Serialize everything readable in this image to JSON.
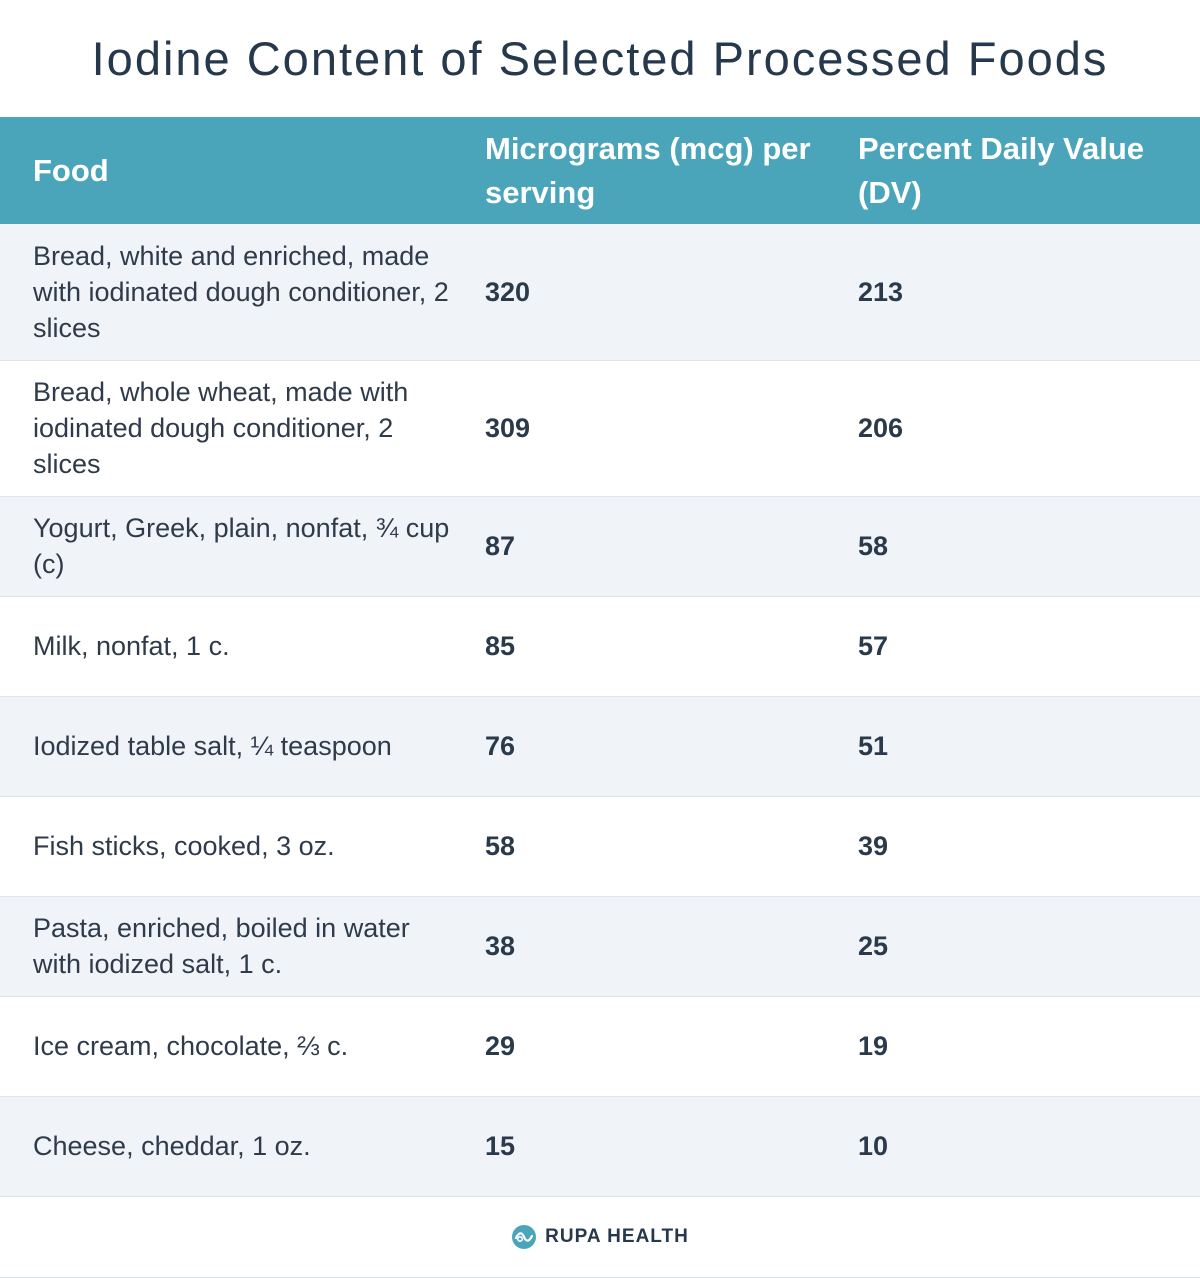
{
  "title": "Iodine Content of Selected Processed Foods",
  "table": {
    "headers": [
      "Food",
      "Micrograms (mcg) per serving",
      "Percent Daily Value (DV)"
    ],
    "rows": [
      {
        "food": "Bread, white and enriched, made with iodinated dough conditioner, 2 slices",
        "mcg": "320",
        "dv": "213"
      },
      {
        "food": "Bread, whole wheat, made with iodinated dough conditioner, 2 slices",
        "mcg": "309",
        "dv": "206"
      },
      {
        "food": "Yogurt, Greek, plain, nonfat, ¾ cup (c)",
        "mcg": "87",
        "dv": "58"
      },
      {
        "food": "Milk, nonfat, 1 c.",
        "mcg": "85",
        "dv": "57"
      },
      {
        "food": "Iodized table salt, ¼ teaspoon",
        "mcg": "76",
        "dv": "51"
      },
      {
        "food": "Fish sticks, cooked, 3 oz.",
        "mcg": "58",
        "dv": "39"
      },
      {
        "food": "Pasta, enriched, boiled in water with iodized salt, 1 c.",
        "mcg": "38",
        "dv": "25"
      },
      {
        "food": "Ice cream, chocolate, ⅔ c.",
        "mcg": "29",
        "dv": "19"
      },
      {
        "food": "Cheese, cheddar, 1 oz.",
        "mcg": "15",
        "dv": "10"
      }
    ]
  },
  "footer": {
    "brand": "RUPA HEALTH",
    "logo_icon": "rupa-health-logo-icon",
    "colors": {
      "header_bg": "#4aa5bb",
      "title": "#25384c",
      "row_alt": "#f0f4f8"
    }
  }
}
